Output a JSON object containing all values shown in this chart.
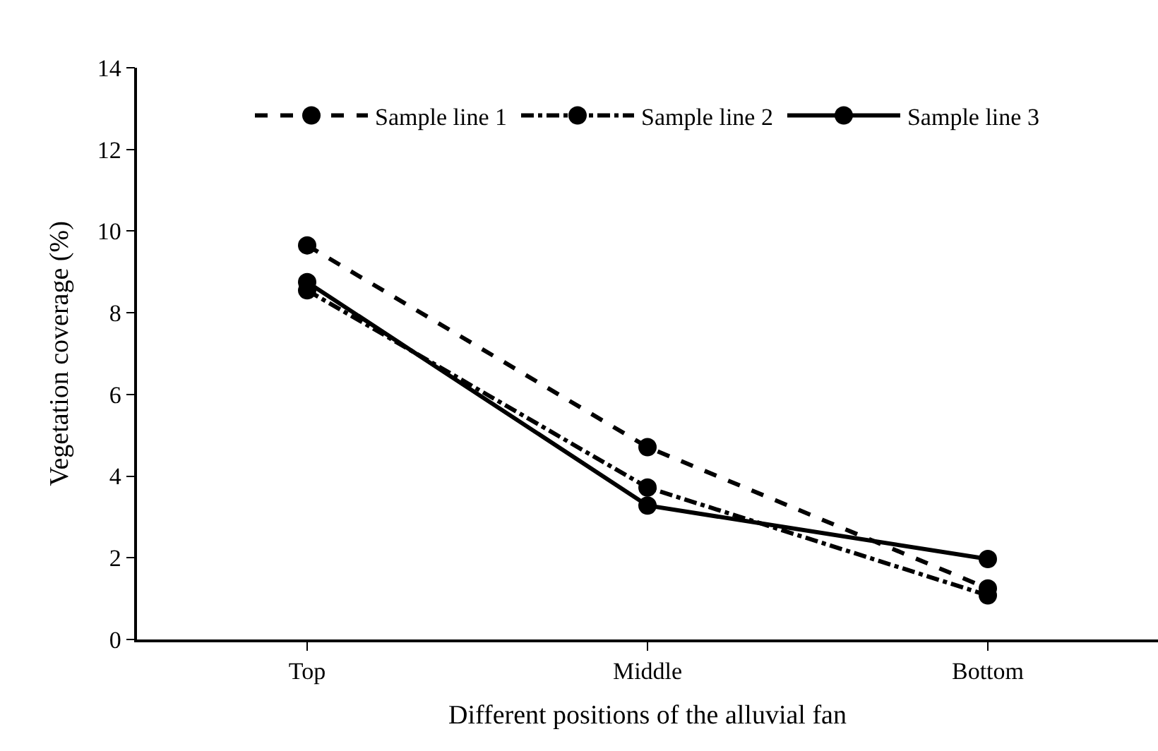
{
  "chart_data": {
    "type": "line",
    "xlabel": "Different positions of the alluvial fan",
    "ylabel": "Vegetation coverage (%)",
    "categories": [
      "Top",
      "Middle",
      "Bottom"
    ],
    "series": [
      {
        "name": "Sample line 1",
        "color": "#000000",
        "line_style": "dashed",
        "values": [
          9.65,
          4.71,
          1.25
        ]
      },
      {
        "name": "Sample line 2",
        "color": "#000000",
        "line_style": "dashdot",
        "values": [
          8.55,
          3.72,
          1.08
        ]
      },
      {
        "name": "Sample line 3",
        "color": "#000000",
        "line_style": "solid",
        "values": [
          8.75,
          3.28,
          1.97
        ]
      }
    ],
    "ylim": [
      0,
      14
    ],
    "yticks": [
      0,
      2,
      4,
      6,
      8,
      10,
      12,
      14
    ],
    "legend": "top",
    "marker": "circle"
  }
}
